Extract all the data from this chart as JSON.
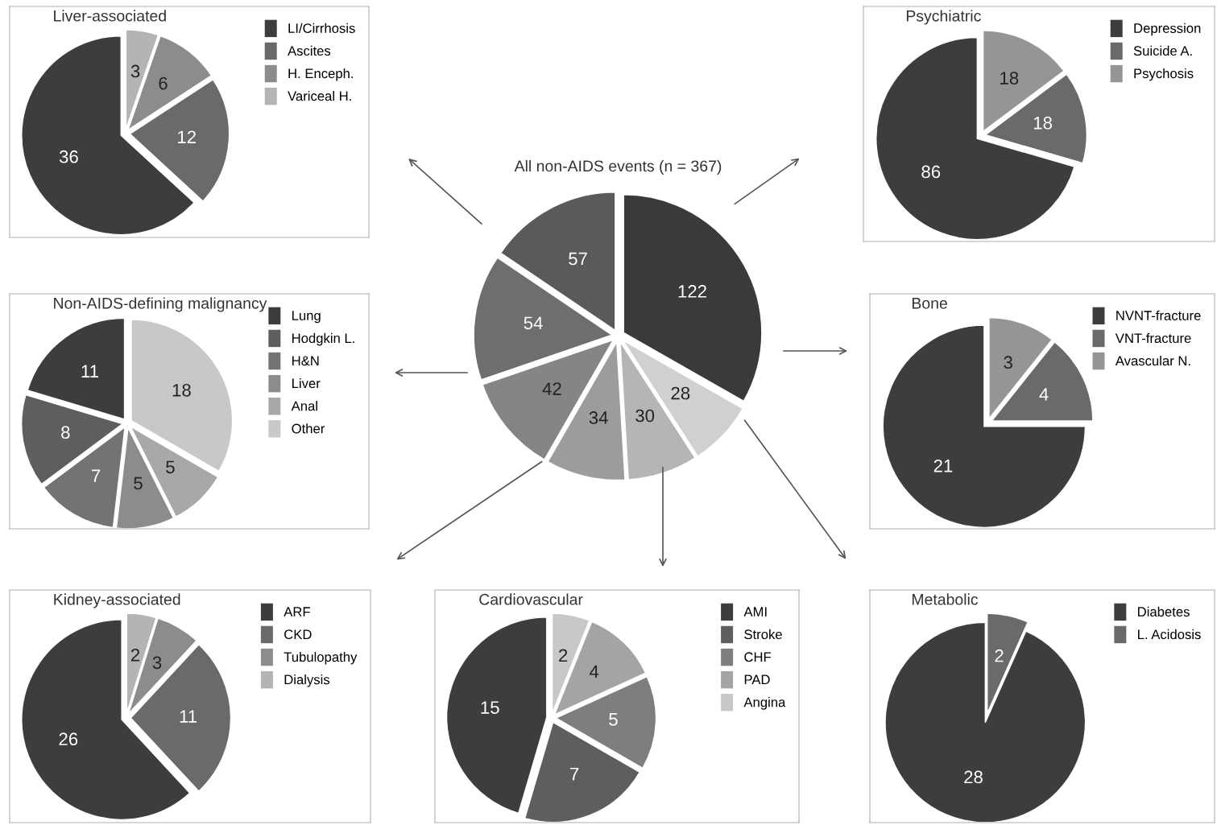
{
  "chart_data": [
    {
      "type": "pie",
      "title": "Liver-associated",
      "categories": [
        "LI/Cirrhosis",
        "Ascites",
        "H. Enceph.",
        "Variceal H."
      ],
      "values": [
        36,
        12,
        6,
        3
      ],
      "colors": [
        "#3d3d3d",
        "#6a6a6a",
        "#8c8c8c",
        "#b4b4b4"
      ],
      "data_labels": true,
      "legend": "right"
    },
    {
      "type": "pie",
      "title": "All non-AIDS events (n = 367)",
      "categories": [
        null,
        null,
        null,
        null,
        null,
        null,
        null
      ],
      "values": [
        57,
        54,
        42,
        34,
        30,
        28,
        122
      ],
      "colors": [
        "#5a5a5a",
        "#6e6e6e",
        "#858585",
        "#9c9c9c",
        "#b5b5b5",
        "#d0d0d0",
        "#3a3a3a"
      ],
      "data_labels": true
    },
    {
      "type": "pie",
      "title": "Psychiatric",
      "categories": [
        "Depression",
        "Suicide A.",
        "Psychosis"
      ],
      "values": [
        86,
        18,
        18
      ],
      "colors": [
        "#3d3d3d",
        "#6a6a6a",
        "#959595"
      ],
      "data_labels": true,
      "legend": "right"
    },
    {
      "type": "pie",
      "title": "Non-AIDS-defining malignancy",
      "categories": [
        "Lung",
        "Hodgkin L.",
        "H&N",
        "Liver",
        "Anal",
        "Other"
      ],
      "values": [
        11,
        8,
        7,
        5,
        5,
        18
      ],
      "colors": [
        "#3d3d3d",
        "#5e5e5e",
        "#737373",
        "#8c8c8c",
        "#a8a8a8",
        "#c8c8c8"
      ],
      "data_labels": true,
      "legend": "right"
    },
    {
      "type": "pie",
      "title": "Bone",
      "categories": [
        "NVNT-fracture",
        "VNT-fracture",
        "Avascular N."
      ],
      "values": [
        21,
        4,
        3
      ],
      "colors": [
        "#3d3d3d",
        "#6a6a6a",
        "#959595"
      ],
      "data_labels": true,
      "legend": "right"
    },
    {
      "type": "pie",
      "title": "Kidney-associated",
      "categories": [
        "ARF",
        "CKD",
        "Tubulopathy",
        "Dialysis"
      ],
      "values": [
        26,
        11,
        3,
        2
      ],
      "colors": [
        "#3d3d3d",
        "#6a6a6a",
        "#8c8c8c",
        "#b4b4b4"
      ],
      "data_labels": true,
      "legend": "right"
    },
    {
      "type": "pie",
      "title": "Cardiovascular",
      "categories": [
        "AMI",
        "Stroke",
        "CHF",
        "PAD",
        "Angina"
      ],
      "values": [
        15,
        7,
        5,
        4,
        2
      ],
      "colors": [
        "#3d3d3d",
        "#5e5e5e",
        "#7e7e7e",
        "#a4a4a4",
        "#c8c8c8"
      ],
      "data_labels": true,
      "legend": "right"
    },
    {
      "type": "pie",
      "title": "Metabolic",
      "categories": [
        "Diabetes",
        "L. Acidosis"
      ],
      "values": [
        28,
        2
      ],
      "colors": [
        "#3d3d3d",
        "#6a6a6a"
      ],
      "data_labels": true,
      "legend": "right"
    }
  ]
}
